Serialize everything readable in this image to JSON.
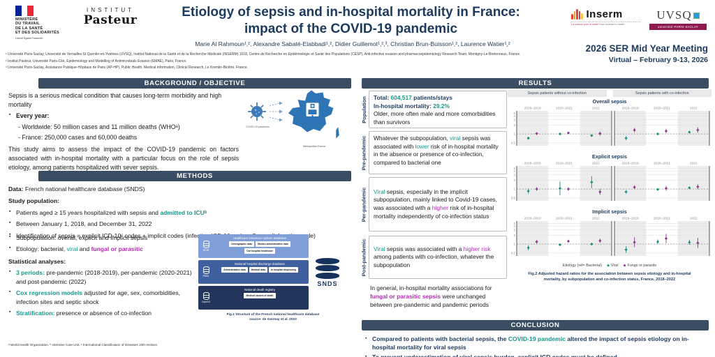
{
  "header": {
    "title_line1": "Etiology of sepsis and in-hospital mortality in France:",
    "title_line2": "impact of the COVID-19 pandemic",
    "authors": "Marie Al Rahmoun¹,², Alexandre Sabaté-Elabbadi¹,², Didier Guillemot¹,²,³, Christian Brun-Buisson¹,², Laurence Watier¹,²",
    "affiliations": [
      "¹ Université Paris-Saclay, Université de Versailles St Quentin-en-Yvelines (UVSQ), Institut National de la Santé et de la Recherche Médicale (INSERM) 1018, Centre de Recherche en Epidémiologie et Santé des Populations (CESP), Anti-infective evasion and pharmacoepidemiology Research Team, Montigny-Le-Bretonneux, France.",
      "² Institut Pasteur, Université Paris-Cité, Epidemiology and Modelling of Antimicrobials Evasion (EMAE), Paris, France.",
      "³ Université Paris-Saclay, Assistance Publique-Hôpitaux de Paris (AP-HP), Public Health, Medical Information, Clinical Research, Le Kremlin-Bicêtre, France."
    ],
    "meeting_line1": "2026 SER Mid Year Meeting",
    "meeting_line2": "Virtual – February 9-13, 2026"
  },
  "logos": {
    "ministry_lines": [
      "MINISTÈRE",
      "DU TRAVAIL",
      "DE LA SANTÉ",
      "ET DES SOLIDARITÉS"
    ],
    "ministry_motto": "Liberté Égalité Fraternité",
    "pasteur_top": "INSTITUT",
    "pasteur_bottom": "Pasteur",
    "inserm_word": "Inserm",
    "inserm_tagline_fr": "La science pour la santé",
    "inserm_tagline_en": "From science to health",
    "uvsq_word": "UVSQ",
    "uvsq_banner": "université PARIS-SACLAY"
  },
  "sections": {
    "background": "BACKGROUND / OBJECTIVE",
    "methods": "METHODS",
    "results": "RESULTS",
    "conclusion": "CONCLUSION"
  },
  "background": {
    "p1": "Sepsis is a serious medical condition that causes long-term morbidity and high mortality",
    "bullet1": "Every year:",
    "sub1": "- Worldwide: 50 million cases and 11 million deaths (WHOᵃ)",
    "sub2": "- France: 250,000 cases and 60,000 deaths",
    "p2": "This study aims to assess the impact of the COVID-19 pandemic on factors associated with in-hospital mortality with a particular focus on the role of sepsis etiology, among patients hospitalized with sever sepsis.",
    "covid_label": "COVID-19 pandemic",
    "map_label": "Metropolitan France"
  },
  "methods": {
    "data_line": [
      {
        "t": "Data: ",
        "s": "b"
      },
      {
        "t": "French national healthcare database (SNDS)"
      }
    ],
    "study_head": "Study population:",
    "study_bullets": [
      [
        {
          "t": "Patients aged ≥ 15 years hospitalized with sepsis and "
        },
        {
          "t": "admitted to ICUᵇ",
          "s": "teal b"
        }
      ],
      [
        {
          "t": "Between January 1, 2018, and December 31, 2022"
        }
      ],
      [
        {
          "t": "Identification of sepsis = explicit ICD-10ᶜ codes + implicit codes (infection ICD-10 code + Organ disfunction code)"
        }
      ]
    ],
    "study_bullets_narrow": [
      [
        {
          "t": "Subpopulation: overall, explicit and implicit sepsis"
        }
      ],
      [
        {
          "t": "Etiology: bacterial, "
        },
        {
          "t": "viral",
          "s": "teal"
        },
        {
          "t": " and "
        },
        {
          "t": "fungal or parasitic",
          "s": "mag b"
        }
      ]
    ],
    "stat_head": "Statistical analyses:",
    "stat_bullets": [
      [
        {
          "t": "3 periods:",
          "s": "teal b"
        },
        {
          "t": " pre-pandemic (2018-2019), per-pandemic (2020-2021) and post-pandemic (2022)"
        }
      ],
      [
        {
          "t": "Cox regression models",
          "s": "teal b"
        },
        {
          "t": " adjusted for age, sex, comorbidities, infection sites and septic shock"
        }
      ],
      [
        {
          "t": "Stratification:",
          "s": "teal b"
        },
        {
          "t": " presence or absence of co-infection"
        }
      ]
    ],
    "footnote": "ᵃ World Health Organization, ᵇ Intensive Care Unit, ᶜ International Classification of Diseases 10th revision"
  },
  "fig1": {
    "blocks": [
      {
        "acronym": "DCIR",
        "title": "Healthcare insurance system database",
        "color": "#7f9fd6",
        "boxes": [
          "Demographic data",
          "Medico-administrative data",
          "Out hospital healthcare"
        ]
      },
      {
        "acronym": "PMSI",
        "title": "National hospital discharge database",
        "color": "#3f5f9e",
        "boxes": [
          "Administrative data",
          "Medical data",
          "In hospital dispensing"
        ]
      },
      {
        "acronym": "CépiDC",
        "title": "National death registry",
        "color": "#23355c",
        "boxes": [
          "Medical causes of death"
        ]
      }
    ],
    "target": "SNDS",
    "caption1": "Fig.1 Structure of the French national healthcare database",
    "caption2": "source: de Germay et al. 2023"
  },
  "results": {
    "rows": [
      {
        "label": "Population",
        "lines": [
          [
            {
              "t": "Total: ",
              "s": "b navy"
            },
            {
              "t": "604,517",
              "s": "b teal"
            },
            {
              "t": " patients/stays",
              "s": "b navy"
            }
          ],
          [
            {
              "t": "In-hospital mortality: ",
              "s": "b navy"
            },
            {
              "t": "29.2%",
              "s": "b teal"
            }
          ],
          [
            {
              "t": "Older, more often male and more comorbidities than survivors"
            }
          ]
        ]
      },
      {
        "label": "Pre-pandemic",
        "lines": [
          [
            {
              "t": "Whatever the subpopulation, "
            },
            {
              "t": "viral",
              "s": "teal"
            },
            {
              "t": " sepsis was associated with "
            },
            {
              "t": "lower",
              "s": "teal"
            },
            {
              "t": " risk of in-hospital mortality in the absence or presence of co-infection, compared to bacterial one"
            }
          ]
        ]
      },
      {
        "label": "Per-pandemic",
        "lines": [
          [
            {
              "t": "Viral",
              "s": "teal"
            },
            {
              "t": " sepsis, especially in the implicit subpopulation, mainly linked to Covid-19 cases, was associated with a "
            },
            {
              "t": "higher",
              "s": "mag"
            },
            {
              "t": " risk of in-hospital mortality independently of co-infection status"
            }
          ]
        ]
      },
      {
        "label": "Post-pandemic",
        "lines": [
          [
            {
              "t": "Viral",
              "s": "teal"
            },
            {
              "t": " sepsis was associated with a "
            },
            {
              "t": "higher risk",
              "s": "mag"
            },
            {
              "t": " among patients with co-infection, whatever the subpopulation"
            }
          ]
        ]
      }
    ],
    "note": [
      [
        {
          "t": "In general, in-hospital mortality associations for "
        },
        {
          "t": "fungal or parasitic sepsis",
          "s": "mag b"
        },
        {
          "t": " were unchanged between pre-pandemic and pandemic periods"
        }
      ]
    ]
  },
  "chart_data": {
    "type": "scatter",
    "title": "Adjusted hazard ratios (forest-style facets)",
    "column_headers": [
      "Sepsis patients without co-infection",
      "Sepsis patients with co-infection"
    ],
    "x_groups": [
      "2018–2019",
      "2020–2021",
      "2022"
    ],
    "ylim": [
      0.4,
      6
    ],
    "yticks": [
      5,
      4,
      3,
      2,
      1,
      0.5
    ],
    "ref_line": 1,
    "legend": {
      "label": "Etiology (ref= Bacterial)",
      "series": [
        {
          "name": "Viral",
          "color": "#178f82"
        },
        {
          "name": "Fungs or parasits",
          "color": "#8e3a8c"
        }
      ]
    },
    "rows": [
      {
        "title": "Overall sepsis",
        "panels": [
          {
            "series": [
              [
                [
                  0.72,
                  0.64,
                  0.8
                ],
                [
                  1.0,
                  0.95,
                  1.06
                ],
                [
                  0.88,
                  0.8,
                  0.97
                ]
              ],
              [
                [
                  1.03,
                  0.92,
                  1.15
                ],
                [
                  1.08,
                  0.99,
                  1.18
                ],
                [
                  1.03,
                  0.88,
                  1.2
                ]
              ]
            ]
          },
          {
            "series": [
              [
                [
                  0.72,
                  0.62,
                  0.84
                ],
                [
                  1.0,
                  0.91,
                  1.1
                ],
                [
                  1.15,
                  1.04,
                  1.27
                ]
              ],
              [
                [
                  1.35,
                  1.14,
                  1.6
                ],
                [
                  1.25,
                  1.05,
                  1.49
                ],
                [
                  1.35,
                  1.1,
                  1.66
                ]
              ]
            ]
          }
        ]
      },
      {
        "title": "Explicit sepsis",
        "panels": [
          {
            "series": [
              [
                [
                  0.85,
                  0.7,
                  1.03
                ],
                [
                  1.05,
                  0.62,
                  1.78
                ],
                [
                  1.7,
                  1.07,
                  2.7
                ]
              ],
              [
                [
                  1.0,
                  0.88,
                  1.14
                ],
                [
                  1.0,
                  0.87,
                  1.15
                ],
                [
                  0.8,
                  0.64,
                  1.0
                ]
              ]
            ]
          },
          {
            "series": [
              [
                [
                  0.8,
                  0.7,
                  0.92
                ],
                [
                  0.97,
                  0.89,
                  1.06
                ],
                [
                  1.1,
                  0.99,
                  1.22
                ]
              ],
              [
                [
                  1.15,
                  0.99,
                  1.34
                ],
                [
                  1.05,
                  0.88,
                  1.25
                ],
                [
                  1.2,
                  0.99,
                  1.45
                ]
              ]
            ]
          }
        ]
      },
      {
        "title": "Implicit sepsis",
        "panels": [
          {
            "series": [
              [
                [
                  0.75,
                  0.62,
                  0.91
                ],
                [
                  0.95,
                  0.88,
                  1.03
                ],
                [
                  1.0,
                  0.9,
                  1.11
                ]
              ],
              [
                [
                  1.2,
                  1.04,
                  1.38
                ],
                [
                  1.25,
                  1.1,
                  1.42
                ],
                [
                  1.3,
                  1.11,
                  1.52
                ]
              ]
            ]
          },
          {
            "series": [
              [
                [
                  0.65,
                  0.5,
                  0.85
                ],
                [
                  1.2,
                  1.0,
                  1.44
                ],
                [
                  1.15,
                  0.95,
                  1.39
                ]
              ],
              [
                [
                  1.15,
                  0.78,
                  1.7
                ],
                [
                  1.55,
                  1.08,
                  2.22
                ],
                [
                  1.1,
                  0.74,
                  1.63
                ]
              ]
            ]
          }
        ]
      }
    ],
    "caption1": "Fig.2 Adjusted hazard ratios for the association between sepsis etiology and in-hospital",
    "caption2": "mortality, by subpopulation and co-infection status, France, 2018–2022"
  },
  "conclusion": {
    "bullets": [
      [
        {
          "t": "Compared to patients with bacterial sepsis, the "
        },
        {
          "t": "COVID-19 pandemic",
          "s": "teal b"
        },
        {
          "t": " altered the impact of sepsis etiology on in-hospital mortality for viral sepsis"
        }
      ],
      [
        {
          "t": "To prevent underestimation of viral sepsis burden, explicit ICD codes must be defined"
        }
      ]
    ]
  },
  "colors": {
    "teal": "#16988a",
    "magenta": "#b52cb5",
    "navy": "#1d3a5f",
    "bar": "#3a4d62",
    "viral_series": "#178f82",
    "fungi_series": "#8e3a8c"
  }
}
